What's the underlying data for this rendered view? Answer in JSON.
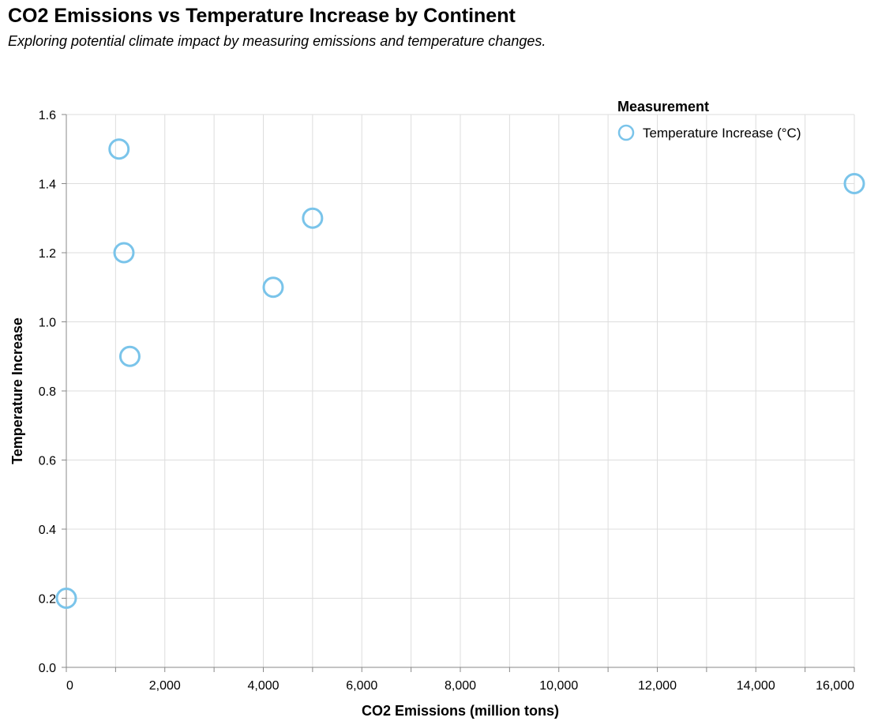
{
  "chart_data": {
    "type": "scatter",
    "title": "CO2 Emissions vs Temperature Increase by Continent",
    "subtitle": "Exploring potential climate impact by measuring emissions and temperature changes.",
    "xlabel": "CO2 Emissions (million tons)",
    "ylabel": "Temperature Increase",
    "xlim": [
      0,
      16000
    ],
    "ylim": [
      0,
      1.6
    ],
    "x_ticks": [
      0,
      2000,
      4000,
      6000,
      8000,
      10000,
      12000,
      14000,
      16000
    ],
    "x_tick_labels": [
      "0",
      "2,000",
      "4,000",
      "6,000",
      "8,000",
      "10,000",
      "12,000",
      "14,000",
      "16,000"
    ],
    "y_ticks": [
      0,
      0.2,
      0.4,
      0.6,
      0.8,
      1.0,
      1.2,
      1.4,
      1.6
    ],
    "y_tick_labels": [
      "0.0",
      "0.2",
      "0.4",
      "0.6",
      "0.8",
      "1.0",
      "1.2",
      "1.4",
      "1.6"
    ],
    "grid": true,
    "legend": {
      "title": "Measurement",
      "position": "top-right",
      "entries": [
        "Temperature Increase (°C)"
      ]
    },
    "series": [
      {
        "name": "Temperature Increase (°C)",
        "color": "#7ac4ea",
        "marker": "hollow-circle",
        "points": [
          {
            "x": 1070,
            "y": 1.5
          },
          {
            "x": 16000,
            "y": 1.4
          },
          {
            "x": 5000,
            "y": 1.3
          },
          {
            "x": 1170,
            "y": 1.2
          },
          {
            "x": 4200,
            "y": 1.1
          },
          {
            "x": 1290,
            "y": 0.9
          },
          {
            "x": 0,
            "y": 0.2
          }
        ]
      }
    ]
  }
}
